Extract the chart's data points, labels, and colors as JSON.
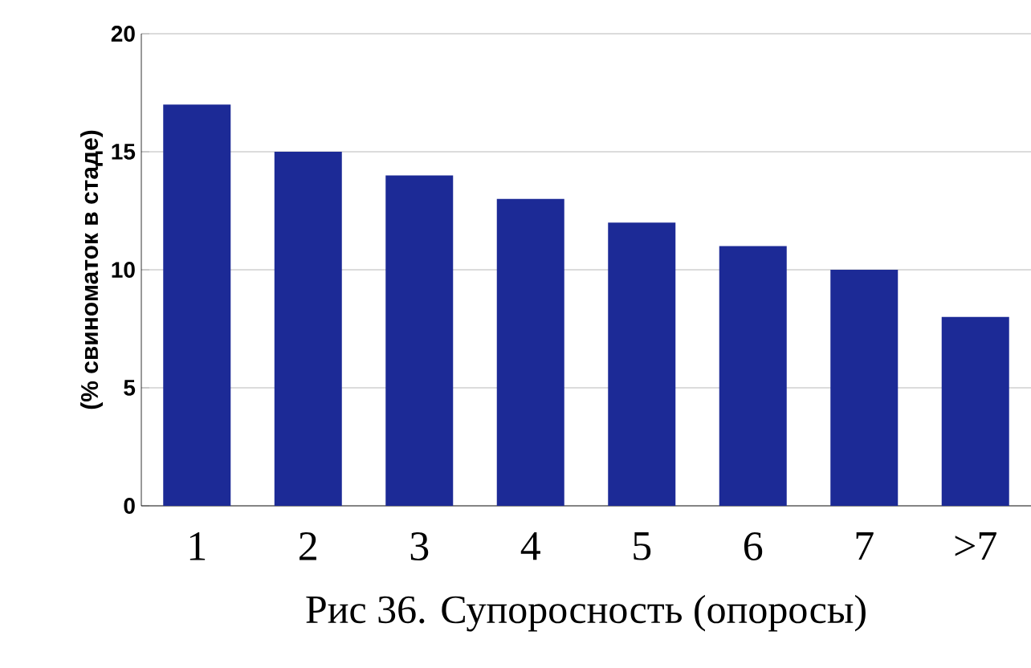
{
  "chart_data": {
    "type": "bar",
    "title": "Рис 36. Супоросность (опоросы)",
    "ylabel": "(% свиноматок в стаде)",
    "categories": [
      "1",
      "2",
      "3",
      "4",
      "5",
      "6",
      "7",
      ">7"
    ],
    "values": [
      17,
      15,
      14,
      13,
      12,
      11,
      10,
      8
    ],
    "color": "#1c2a96",
    "ylim": [
      0,
      20
    ],
    "yticks": [
      0,
      5,
      10,
      15,
      20
    ],
    "grid": "y"
  }
}
